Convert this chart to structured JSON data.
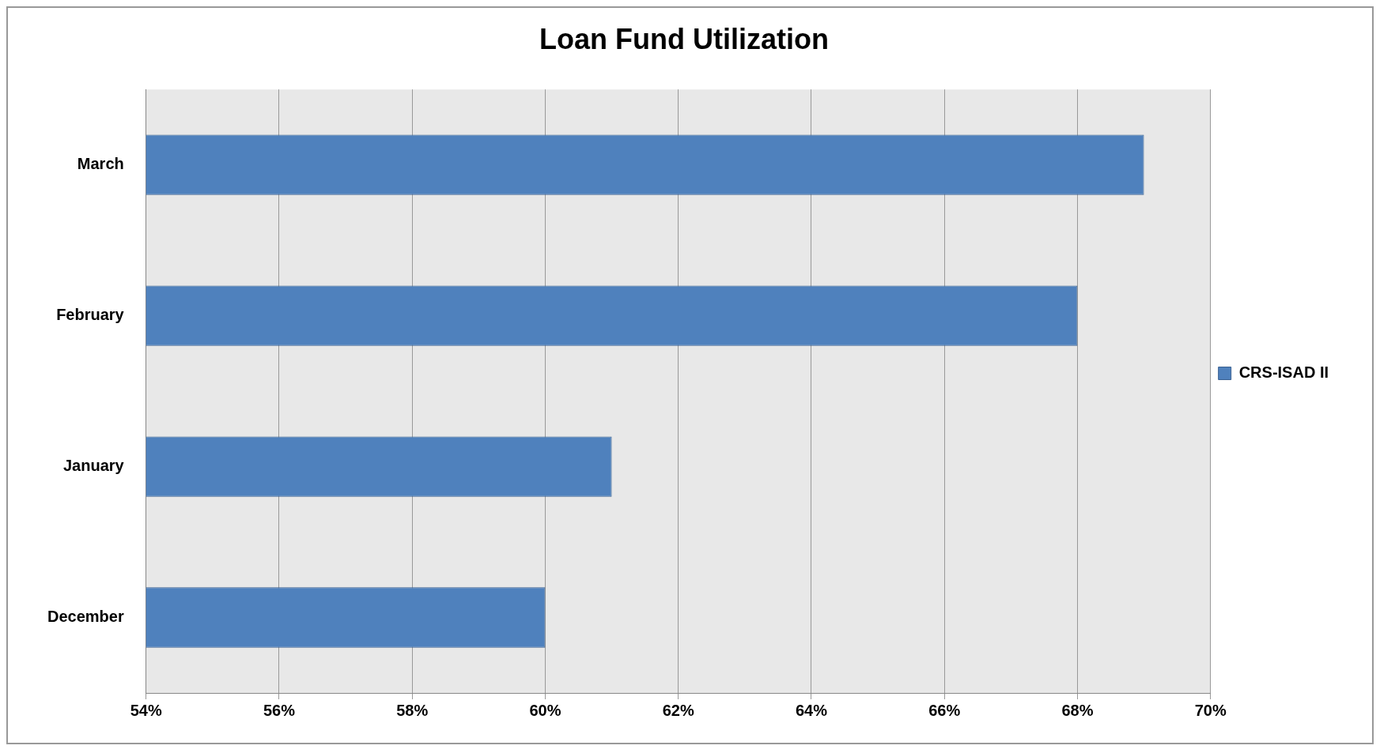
{
  "chart_data": {
    "type": "bar",
    "orientation": "horizontal",
    "title": "Loan Fund Utilization",
    "categories": [
      "March",
      "February",
      "January",
      "December"
    ],
    "series": [
      {
        "name": "CRS-ISAD II",
        "color": "#4f81bd",
        "values": [
          69,
          68,
          61,
          60
        ]
      }
    ],
    "xlim": [
      54,
      70
    ],
    "xticks": [
      {
        "value": 54,
        "label": "54%"
      },
      {
        "value": 56,
        "label": "56%"
      },
      {
        "value": 58,
        "label": "58%"
      },
      {
        "value": 60,
        "label": "60%"
      },
      {
        "value": 62,
        "label": "62%"
      },
      {
        "value": 64,
        "label": "64%"
      },
      {
        "value": 66,
        "label": "66%"
      },
      {
        "value": 68,
        "label": "68%"
      },
      {
        "value": 70,
        "label": "70%"
      }
    ],
    "grid": "x",
    "legend": "right"
  }
}
